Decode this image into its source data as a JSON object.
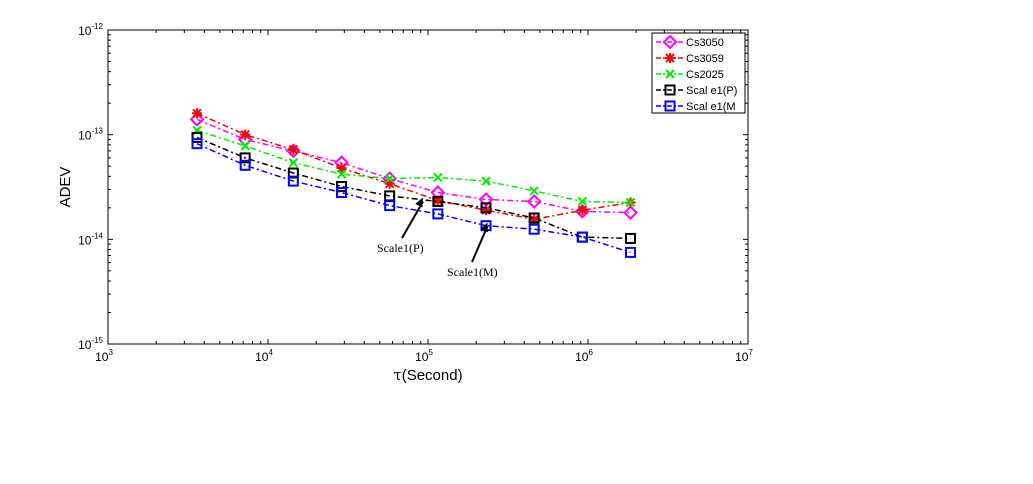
{
  "chart_data": {
    "type": "line",
    "xlabel_symbol": "τ",
    "xlabel_text": "(Second)",
    "ylabel": "ADEV",
    "x_scale": "log",
    "y_scale": "log",
    "xlim": [
      1000,
      10000000
    ],
    "ylim": [
      1e-15,
      1e-12
    ],
    "x_ticks": [
      {
        "base": "10",
        "exp": "3"
      },
      {
        "base": "10",
        "exp": "4"
      },
      {
        "base": "10",
        "exp": "5"
      },
      {
        "base": "10",
        "exp": "6"
      },
      {
        "base": "10",
        "exp": "7"
      }
    ],
    "y_ticks": [
      {
        "base": "10",
        "exp": "-15"
      },
      {
        "base": "10",
        "exp": "-14"
      },
      {
        "base": "10",
        "exp": "-13"
      },
      {
        "base": "10",
        "exp": "-12"
      }
    ],
    "grid": false,
    "legend_position": "top-right",
    "series": [
      {
        "name": "Cs3050",
        "color": "#ff00ff",
        "marker": "diamond",
        "x": [
          3600,
          7200,
          14400,
          28800,
          57600,
          115200,
          230400,
          460800,
          921600,
          1843200
        ],
        "y": [
          1.4e-13,
          9e-14,
          7e-14,
          5.4e-14,
          3.8e-14,
          2.8e-14,
          2.4e-14,
          2.3e-14,
          1.85e-14,
          1.8e-14
        ]
      },
      {
        "name": "Cs3059",
        "color": "#ff0000",
        "marker": "asterisk",
        "x": [
          3600,
          7200,
          14400,
          28800,
          57600,
          115200,
          230400,
          460800,
          921600,
          1843200
        ],
        "y": [
          1.6e-13,
          1e-13,
          7.2e-14,
          4.8e-14,
          3.4e-14,
          2.35e-14,
          1.9e-14,
          1.55e-14,
          1.9e-14,
          2.25e-14
        ]
      },
      {
        "name": "Cs2025",
        "color": "#00ee00",
        "marker": "cross",
        "x": [
          3600,
          7200,
          14400,
          28800,
          57600,
          115200,
          230400,
          460800,
          921600,
          1843200
        ],
        "y": [
          1.1e-13,
          7.8e-14,
          5.4e-14,
          4.2e-14,
          3.8e-14,
          3.9e-14,
          3.6e-14,
          2.9e-14,
          2.3e-14,
          2.25e-14
        ]
      },
      {
        "name": "Scal e1(P)",
        "color": "#000000",
        "marker": "square",
        "x": [
          3600,
          7200,
          14400,
          28800,
          57600,
          115200,
          230400,
          460800,
          921600,
          1843200
        ],
        "y": [
          9.4e-14,
          6e-14,
          4.3e-14,
          3.2e-14,
          2.6e-14,
          2.3e-14,
          2e-14,
          1.6e-14,
          1.05e-14,
          1.02e-14
        ]
      },
      {
        "name": "Scal e1(M",
        "color": "#0000ff",
        "marker": "square",
        "x": [
          3600,
          7200,
          14400,
          28800,
          57600,
          115200,
          230400,
          460800,
          921600,
          1843200
        ],
        "y": [
          8.2e-14,
          5.1e-14,
          3.6e-14,
          2.8e-14,
          2.1e-14,
          1.75e-14,
          1.35e-14,
          1.25e-14,
          1.05e-14,
          7.5e-15
        ]
      }
    ],
    "annotations": [
      {
        "text": "Scale1(P)",
        "target_x": 93000,
        "target_y": 2.5e-14
      },
      {
        "text": "Scale1(M)",
        "target_x": 235000,
        "target_y": 1.45e-14
      }
    ]
  }
}
